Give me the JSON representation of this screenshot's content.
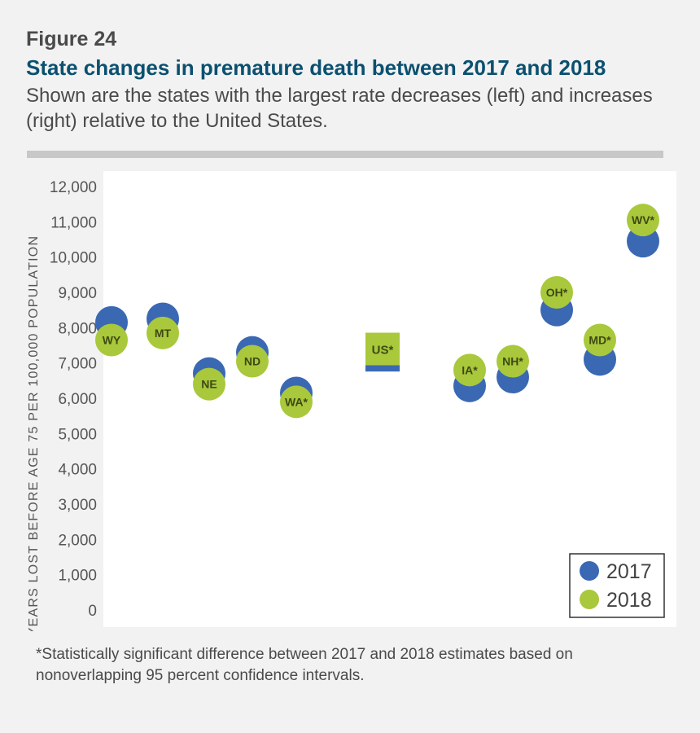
{
  "figure_label": "Figure 24",
  "title": "State changes in premature death between 2017 and 2018",
  "subtitle": "Shown are the states with the largest rate decreases (left) and increases (right) relative to the United States.",
  "footnote": "*Statistically significant difference between 2017 and 2018 estimates based on nonoverlapping 95 percent confidence intervals.",
  "colors": {
    "series_2017": "#3a68b3",
    "series_2018": "#a9c83b",
    "label_text": "#3d4a14",
    "axis_text": "#555555"
  },
  "chart_data": {
    "type": "scatter",
    "ylabel": "YEARS LOST BEFORE AGE 75 PER 100,000 POPULATION",
    "ylim": [
      0,
      12000
    ],
    "yticks": [
      0,
      1000,
      2000,
      3000,
      4000,
      5000,
      6000,
      7000,
      8000,
      9000,
      10000,
      11000,
      12000
    ],
    "ytick_labels": [
      "0",
      "1,000",
      "2,000",
      "3,000",
      "4,000",
      "5,000",
      "6,000",
      "7,000",
      "8,000",
      "9,000",
      "10,000",
      "11,000",
      "12,000"
    ],
    "categories": [
      "WY",
      "MT",
      "NE",
      "ND",
      "WA*",
      "US*",
      "IA*",
      "NH*",
      "OH*",
      "MD*",
      "WV*"
    ],
    "series": [
      {
        "name": "2017",
        "values": [
          8150,
          8250,
          6700,
          7300,
          6150,
          6850,
          6350,
          6600,
          8500,
          7100,
          10450
        ]
      },
      {
        "name": "2018",
        "values": [
          7650,
          7850,
          6400,
          7050,
          5900,
          7350,
          6800,
          7050,
          9000,
          7650,
          11050
        ]
      }
    ],
    "legend": {
      "position": "bottom-right",
      "entries": [
        "2017",
        "2018"
      ]
    },
    "grid": false
  }
}
